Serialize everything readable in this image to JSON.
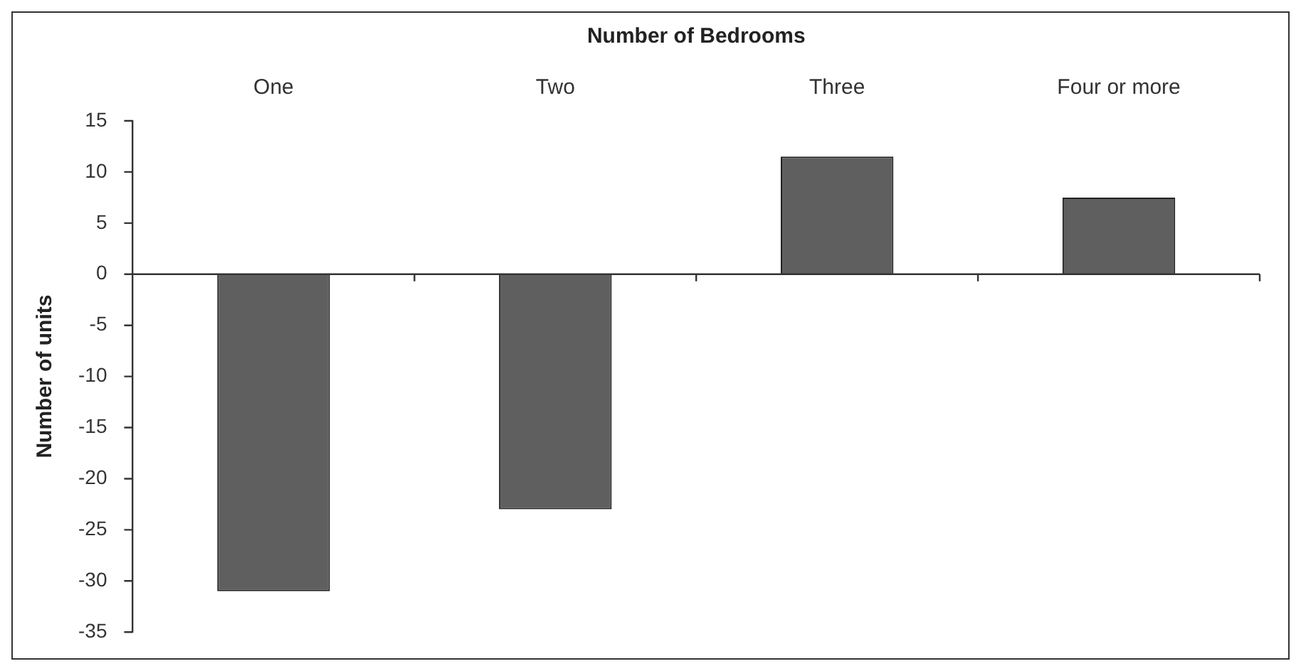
{
  "chart_data": {
    "type": "bar",
    "xlabel": "Number of Bedrooms",
    "ylabel": "Number of units",
    "categories": [
      "One",
      "Two",
      "Three",
      "Four or more"
    ],
    "values": [
      -31,
      -23,
      11.5,
      7.5
    ],
    "color": "#5f5f5f",
    "ylim": [
      -35,
      15
    ],
    "yticks": [
      -35,
      -30,
      -25,
      -20,
      -15,
      -10,
      -5,
      0,
      5,
      10,
      15
    ],
    "legend": false
  }
}
